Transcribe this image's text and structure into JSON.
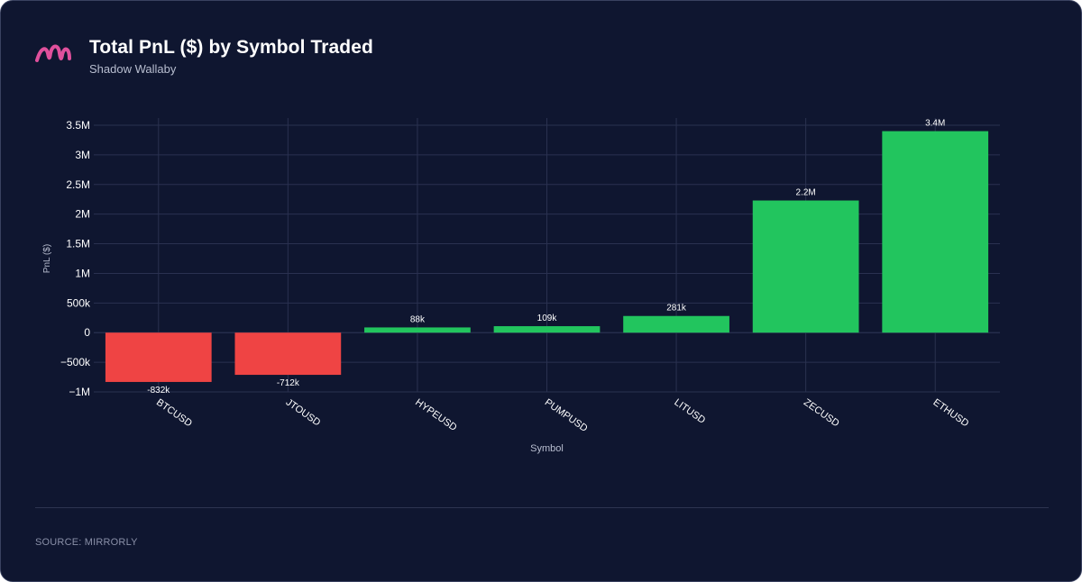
{
  "header": {
    "title": "Total PnL ($) by Symbol Traded",
    "subtitle": "Shadow Wallaby",
    "logo_icon": "brand-m-logo-icon"
  },
  "footer": {
    "source": "SOURCE: MIRRORLY"
  },
  "colors": {
    "background": "#0f1630",
    "positive": "#22c55e",
    "negative": "#ef4444",
    "brand": "#e0509c",
    "grid": "#2a3150",
    "text": "#ffffff",
    "muted": "#b8bed0"
  },
  "chart_data": {
    "type": "bar",
    "title": "Total PnL ($) by Symbol Traded",
    "subtitle": "Shadow Wallaby",
    "xlabel": "Symbol",
    "ylabel": "PnL ($)",
    "ylim": [
      -1000000,
      3500000
    ],
    "yticks": [
      -1000000,
      -500000,
      0,
      500000,
      1000000,
      1500000,
      2000000,
      2500000,
      3000000,
      3500000
    ],
    "ytick_labels": [
      "−1M",
      "−500k",
      "0",
      "500k",
      "1M",
      "1.5M",
      "2M",
      "2.5M",
      "3M",
      "3.5M"
    ],
    "categories": [
      "BTCUSD",
      "JTOUSD",
      "HYPEUSD",
      "PUMPUSD",
      "LITUSD",
      "ZECUSD",
      "ETHUSD"
    ],
    "values": [
      -832000,
      -712000,
      88000,
      109000,
      281000,
      2230000,
      3400000
    ],
    "data_labels": [
      "-832k",
      "-712k",
      "88k",
      "109k",
      "281k",
      "2.2M",
      "3.4M"
    ],
    "grid": true,
    "legend": "none"
  }
}
